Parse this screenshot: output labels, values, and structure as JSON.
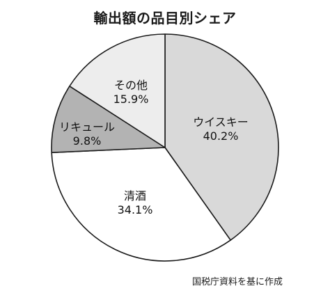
{
  "chart_data": {
    "type": "pie",
    "title": "輸出額の品目別シェア",
    "slices": [
      {
        "label": "ウイスキー",
        "value": 40.2,
        "value_label": "40.2%",
        "color": "#d9d9d9"
      },
      {
        "label": "清酒",
        "value": 34.1,
        "value_label": "34.1%",
        "color": "#ffffff"
      },
      {
        "label": "リキュール",
        "value": 9.8,
        "value_label": "9.8%",
        "color": "#b3b3b3"
      },
      {
        "label": "その他",
        "value": 15.9,
        "value_label": "15.9%",
        "color": "#ededed"
      }
    ],
    "start_angle": "12 o'clock",
    "direction": "clockwise",
    "outline_color": "#1a1a1a"
  },
  "source_note": "国税庁資料を基に作成"
}
